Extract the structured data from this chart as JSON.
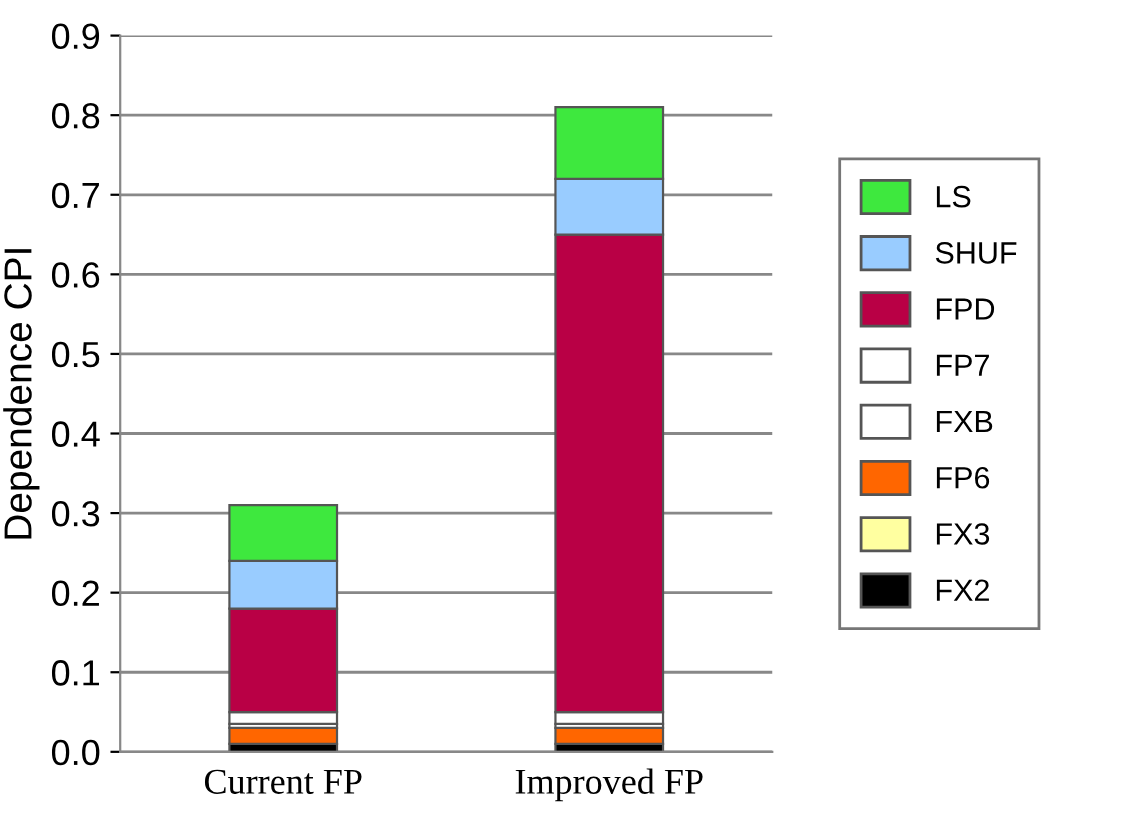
{
  "chart_data": {
    "type": "bar",
    "stacked": true,
    "ylabel": "Dependence CPI",
    "categories": [
      "Current FP",
      "Improved FP"
    ],
    "series": [
      {
        "name": "FX2",
        "color": "#000000",
        "values": [
          0.01,
          0.01
        ]
      },
      {
        "name": "FX3",
        "color": "#ffffa0",
        "values": [
          0,
          0
        ]
      },
      {
        "name": "FP6",
        "color": "#ff6600",
        "values": [
          0.02,
          0.02
        ]
      },
      {
        "name": "FXB",
        "color": "#ffffff",
        "values": [
          0.005,
          0.005
        ]
      },
      {
        "name": "FP7",
        "color": "#ffffff",
        "values": [
          0.015,
          0.015
        ]
      },
      {
        "name": "FPD",
        "color": "#b90045",
        "values": [
          0.13,
          0.6
        ]
      },
      {
        "name": "SHUF",
        "color": "#99ccff",
        "values": [
          0.06,
          0.07
        ]
      },
      {
        "name": "LS",
        "color": "#3ee83e",
        "values": [
          0.07,
          0.09
        ]
      }
    ],
    "ylim": [
      0,
      0.9
    ],
    "yticks": [
      {
        "value": 0,
        "label": "0.0"
      },
      0.1,
      0.2,
      0.3,
      0.4,
      0.5,
      0.6,
      0.7,
      0.8,
      0.9
    ],
    "grid": "y",
    "legend": "right"
  }
}
